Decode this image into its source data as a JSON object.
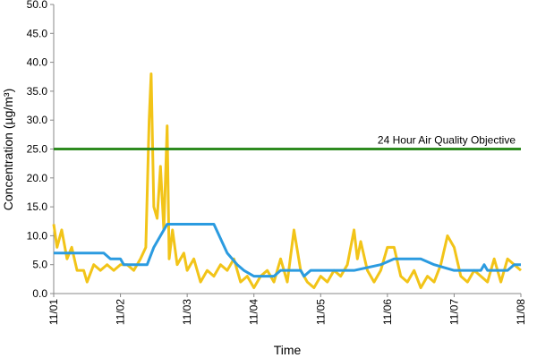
{
  "chart_data": {
    "type": "line",
    "y_label": "Concentration (µg/m³)",
    "x_label": "Time",
    "xlim": [
      0,
      7
    ],
    "xticks": [
      {
        "value": 0,
        "label": "11/01"
      },
      {
        "value": 1,
        "label": "11/02"
      },
      {
        "value": 2,
        "label": "11/03"
      },
      {
        "value": 3,
        "label": "11/04"
      },
      {
        "value": 4,
        "label": "11/05"
      },
      {
        "value": 5,
        "label": "11/06"
      },
      {
        "value": 6,
        "label": "11/07"
      },
      {
        "value": 7,
        "label": "11/08"
      }
    ],
    "ylim": [
      0,
      50
    ],
    "yticks": [
      {
        "value": 0,
        "label": "0.0"
      },
      {
        "value": 5,
        "label": "5.0"
      },
      {
        "value": 10,
        "label": "10.0"
      },
      {
        "value": 15,
        "label": "15.0"
      },
      {
        "value": 20,
        "label": "20.0"
      },
      {
        "value": 25,
        "label": "25.0"
      },
      {
        "value": 30,
        "label": "30.0"
      },
      {
        "value": 35,
        "label": "35.0"
      },
      {
        "value": 40,
        "label": "40.0"
      },
      {
        "value": 45,
        "label": "45.0"
      },
      {
        "value": 50,
        "label": "50.0"
      }
    ],
    "objective": {
      "value": 25,
      "label": "24 Hour Air Quality Objective",
      "color": "#2e8b20"
    },
    "series": [
      {
        "color": "#f2c418",
        "x": [
          0,
          0.05,
          0.12,
          0.2,
          0.27,
          0.35,
          0.45,
          0.5,
          0.6,
          0.7,
          0.8,
          0.9,
          1.0,
          1.1,
          1.2,
          1.3,
          1.38,
          1.43,
          1.46,
          1.5,
          1.55,
          1.6,
          1.65,
          1.7,
          1.73,
          1.78,
          1.85,
          1.95,
          2.0,
          2.1,
          2.2,
          2.3,
          2.4,
          2.5,
          2.6,
          2.7,
          2.8,
          2.9,
          3.0,
          3.1,
          3.2,
          3.3,
          3.4,
          3.5,
          3.6,
          3.7,
          3.8,
          3.9,
          4.0,
          4.1,
          4.2,
          4.3,
          4.4,
          4.5,
          4.55,
          4.6,
          4.7,
          4.8,
          4.9,
          5.0,
          5.1,
          5.2,
          5.3,
          5.4,
          5.5,
          5.6,
          5.7,
          5.8,
          5.9,
          6.0,
          6.1,
          6.2,
          6.3,
          6.4,
          6.5,
          6.6,
          6.7,
          6.8,
          6.9,
          7.0
        ],
        "values": [
          12,
          8,
          11,
          6,
          8,
          4,
          4,
          2,
          5,
          4,
          5,
          4,
          5,
          5,
          4,
          6,
          8,
          30,
          38,
          15,
          13,
          22,
          11,
          29,
          6,
          11,
          5,
          7,
          4,
          6,
          2,
          4,
          3,
          5,
          4,
          6,
          2,
          3,
          1,
          3,
          4,
          2,
          6,
          2,
          11,
          4,
          2,
          1,
          3,
          2,
          4,
          3,
          5,
          11,
          6,
          9,
          4,
          2,
          4,
          8,
          8,
          3,
          2,
          4,
          1,
          3,
          2,
          5,
          10,
          8,
          3,
          2,
          4,
          3,
          2,
          6,
          2,
          6,
          5,
          4
        ]
      },
      {
        "color": "#2b9be0",
        "x": [
          0,
          0.75,
          0.85,
          1.0,
          1.05,
          1.4,
          1.5,
          1.6,
          1.7,
          2.4,
          2.6,
          2.75,
          2.85,
          3.0,
          3.3,
          3.4,
          3.7,
          3.75,
          3.85,
          4.5,
          4.9,
          5.1,
          5.5,
          5.7,
          6.0,
          6.4,
          6.45,
          6.5,
          6.8,
          6.9,
          7.0
        ],
        "values": [
          7,
          7,
          6,
          6,
          5,
          5,
          8,
          10,
          12,
          12,
          7,
          5,
          4,
          3,
          3,
          4,
          4,
          3,
          4,
          4,
          5,
          6,
          6,
          5,
          4,
          4,
          5,
          4,
          4,
          5,
          5
        ]
      }
    ]
  }
}
